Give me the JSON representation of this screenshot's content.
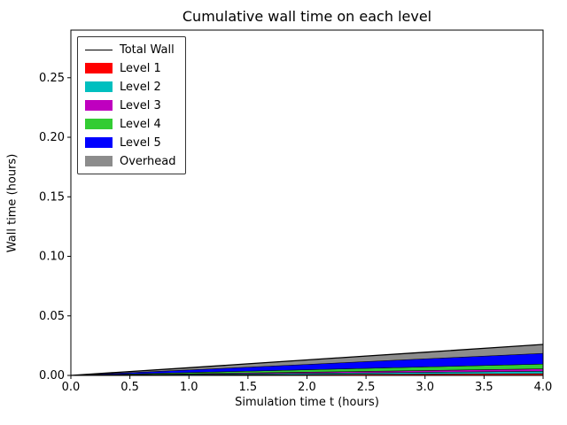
{
  "chart_data": {
    "type": "area",
    "title": "Cumulative wall time on each level",
    "xlabel": "Simulation time t (hours)",
    "ylabel": "Wall time (hours)",
    "xlim": [
      0,
      4
    ],
    "ylim": [
      0,
      0.29
    ],
    "grid": false,
    "xticks": [
      0.0,
      0.5,
      1.0,
      1.5,
      2.0,
      2.5,
      3.0,
      3.5,
      4.0
    ],
    "xticklabels": [
      "0.0",
      "0.5",
      "1.0",
      "1.5",
      "2.0",
      "2.5",
      "3.0",
      "3.5",
      "4.0"
    ],
    "yticks": [
      0.0,
      0.05,
      0.1,
      0.15,
      0.2,
      0.25
    ],
    "yticklabels": [
      "0.00",
      "0.05",
      "0.10",
      "0.15",
      "0.20",
      "0.25"
    ],
    "x": [
      0,
      0.5,
      1.0,
      1.5,
      2.0,
      2.5,
      3.0,
      3.5,
      4.0
    ],
    "series": [
      {
        "name": "Level 1",
        "color": "#ff0000",
        "values": [
          0,
          0.000188,
          0.000375,
          0.000563,
          0.00075,
          0.000938,
          0.001125,
          0.001313,
          0.0015
        ]
      },
      {
        "name": "Level 2",
        "color": "#00bfbf",
        "values": [
          0,
          0.00025,
          0.0005,
          0.00075,
          0.001,
          0.00125,
          0.0015,
          0.00175,
          0.002
        ]
      },
      {
        "name": "Level 3",
        "color": "#bf00bf",
        "values": [
          0,
          0.00025,
          0.0005,
          0.00075,
          0.001,
          0.00125,
          0.0015,
          0.00175,
          0.002
        ]
      },
      {
        "name": "Level 4",
        "color": "#33cc33",
        "values": [
          0,
          0.0005,
          0.001,
          0.0015,
          0.002,
          0.0025,
          0.003,
          0.0035,
          0.004
        ]
      },
      {
        "name": "Level 5",
        "color": "#0000ff",
        "values": [
          0,
          0.001125,
          0.00225,
          0.003375,
          0.0045,
          0.005625,
          0.00675,
          0.007875,
          0.009
        ]
      },
      {
        "name": "Overhead",
        "color": "#8c8c8c",
        "values": [
          0,
          0.000938,
          0.001875,
          0.002813,
          0.00375,
          0.004688,
          0.005625,
          0.006563,
          0.0075
        ]
      }
    ],
    "total_line": {
      "name": "Total Wall",
      "color": "#000000",
      "values": [
        0,
        0.00325,
        0.0065,
        0.00975,
        0.013,
        0.01625,
        0.0195,
        0.02275,
        0.026
      ]
    },
    "legend": {
      "position": "upper left",
      "entries": [
        {
          "label": "Total Wall",
          "color": "#000000",
          "type": "line"
        },
        {
          "label": "Level 1",
          "color": "#ff0000",
          "type": "patch"
        },
        {
          "label": "Level 2",
          "color": "#00bfbf",
          "type": "patch"
        },
        {
          "label": "Level 3",
          "color": "#bf00bf",
          "type": "patch"
        },
        {
          "label": "Level 4",
          "color": "#33cc33",
          "type": "patch"
        },
        {
          "label": "Level 5",
          "color": "#0000ff",
          "type": "patch"
        },
        {
          "label": "Overhead",
          "color": "#8c8c8c",
          "type": "patch"
        }
      ]
    }
  }
}
